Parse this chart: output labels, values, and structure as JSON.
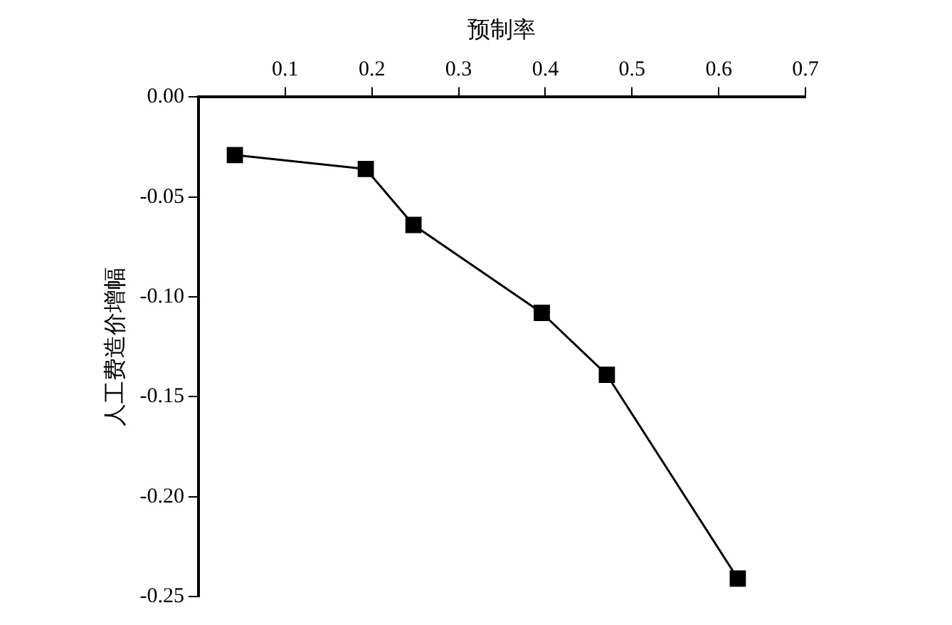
{
  "chart_data": {
    "type": "line",
    "xlabel": "预制率",
    "ylabel": "人工费造价增幅",
    "x": [
      0.042,
      0.193,
      0.248,
      0.396,
      0.471,
      0.622
    ],
    "series": [
      {
        "color": "#000000",
        "values": [
          -0.029,
          -0.036,
          -0.064,
          -0.108,
          -0.139,
          -0.241
        ]
      }
    ],
    "xlim": [
      0,
      0.7
    ],
    "xticks": [
      0.1,
      0.2,
      0.3,
      0.4,
      0.5,
      0.6,
      0.7
    ],
    "ylim": [
      -0.25,
      0
    ],
    "yticks": [
      {
        "value": 0,
        "label": "0.00"
      },
      {
        "value": -0.05,
        "label": "-0.05"
      },
      {
        "value": -0.1,
        "label": "-0.10"
      },
      {
        "value": -0.15,
        "label": "-0.15"
      },
      {
        "value": -0.2,
        "label": "-0.20"
      },
      {
        "value": -0.25,
        "label": "-0.25"
      }
    ],
    "marker": "square",
    "line_style": "solid",
    "grid": false,
    "legend": false
  }
}
